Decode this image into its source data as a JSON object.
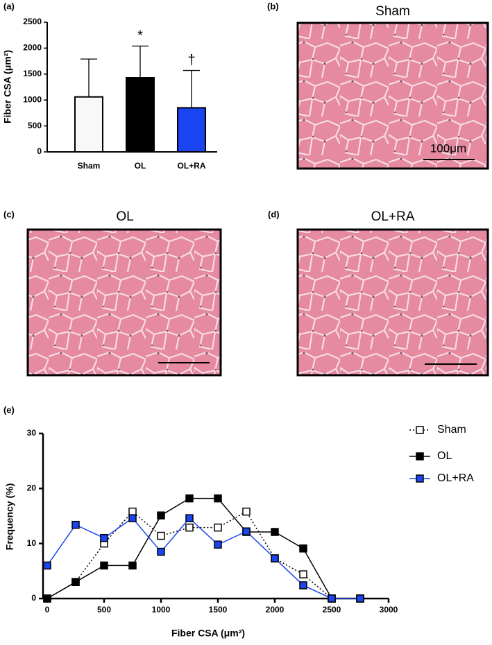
{
  "chart_data": [
    {
      "type": "bar",
      "panel_label": "(a)",
      "y_label": "Fiber CSA (μm²)",
      "categories": [
        "Sham",
        "OL",
        "OL+RA"
      ],
      "values": [
        1060,
        1430,
        850
      ],
      "errors": [
        730,
        610,
        720
      ],
      "colors": [
        "#f8f8f8",
        "#000000",
        "#1a45f0"
      ],
      "annotations": [
        null,
        "*",
        "†"
      ],
      "ylim": [
        0,
        2500
      ],
      "yticks": [
        0,
        500,
        1000,
        1500,
        2000,
        2500
      ]
    },
    {
      "type": "line",
      "panel_label": "(e)",
      "x_label": "Fiber CSA  (μm²)",
      "y_label": "Frequency  (%)",
      "x": [
        0,
        250,
        500,
        750,
        1000,
        1250,
        1500,
        1750,
        2000,
        2250,
        2500,
        2750
      ],
      "series": [
        {
          "name": "Sham",
          "color": "#000000",
          "values": [
            0,
            3,
            10,
            15.8,
            11.4,
            12.9,
            12.9,
            15.8,
            7.3,
            4.4,
            0,
            0
          ]
        },
        {
          "name": "OL",
          "color": "#000000",
          "values": [
            0,
            3,
            6,
            6,
            15.1,
            18.2,
            18.2,
            12.1,
            12.1,
            9.1,
            0,
            0
          ]
        },
        {
          "name": "OL+RA",
          "color": "#1a45f0",
          "values": [
            6,
            13.4,
            11,
            14.6,
            8.5,
            14.6,
            9.8,
            12.2,
            7.3,
            2.4,
            0,
            0
          ]
        }
      ],
      "xlim": [
        0,
        3000
      ],
      "xticks": [
        0,
        500,
        1000,
        1500,
        2000,
        2500,
        3000
      ],
      "ylim": [
        0,
        30
      ],
      "yticks": [
        0,
        10,
        20,
        30
      ],
      "legend": "right"
    }
  ],
  "images": [
    {
      "label": "(b)",
      "title": "Sham",
      "scale_label": "100μm"
    },
    {
      "label": "(c)",
      "title": "OL"
    },
    {
      "label": "(d)",
      "title": "OL+RA"
    }
  ]
}
